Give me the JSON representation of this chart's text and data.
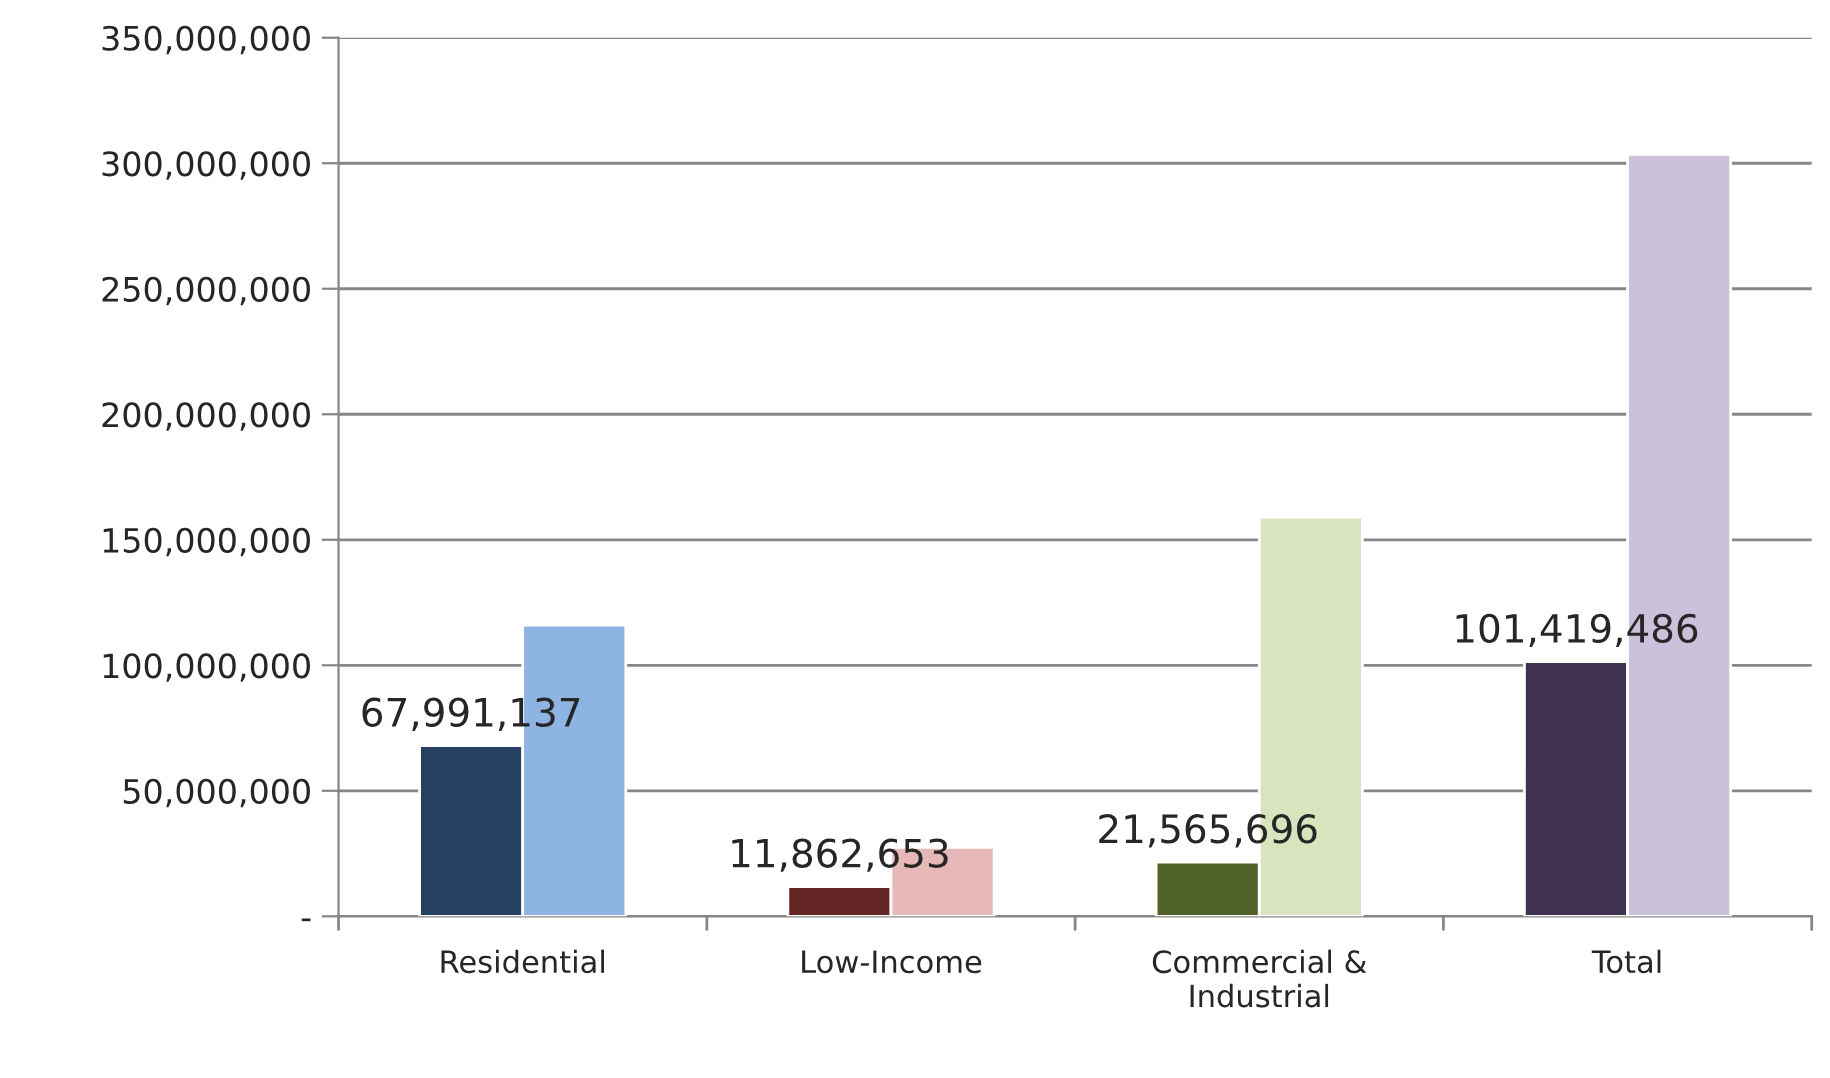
{
  "chart_data": {
    "type": "bar",
    "categories": [
      "Residential",
      "Low-Income",
      "Commercial &\nIndustrial",
      "Total"
    ],
    "series": [
      {
        "colors": [
          "#264061",
          "#632523",
          "#4f6228",
          "#403151"
        ],
        "values": [
          67991137,
          11862653,
          21565696,
          101419486
        ],
        "value_labels": [
          "67,991,137",
          "11,862,653",
          "21,565,696",
          "101,419,486"
        ]
      },
      {
        "colors": [
          "#8eb4e3",
          "#e6b9b8",
          "#d7e4bd",
          "#ccc1da"
        ],
        "values": [
          116000000,
          27500000,
          159000000,
          303500000
        ]
      }
    ],
    "ylim": [
      0,
      350000000
    ],
    "yticks": [
      {
        "value": 0,
        "label": "-"
      },
      {
        "value": 50000000,
        "label": "50,000,000"
      },
      {
        "value": 100000000,
        "label": "100,000,000"
      },
      {
        "value": 150000000,
        "label": "150,000,000"
      },
      {
        "value": 200000000,
        "label": "200,000,000"
      },
      {
        "value": 250000000,
        "label": "250,000,000"
      },
      {
        "value": 300000000,
        "label": "300,000,000"
      },
      {
        "value": 350000000,
        "label": "350,000,000"
      }
    ],
    "grid": "y",
    "legend": false
  }
}
